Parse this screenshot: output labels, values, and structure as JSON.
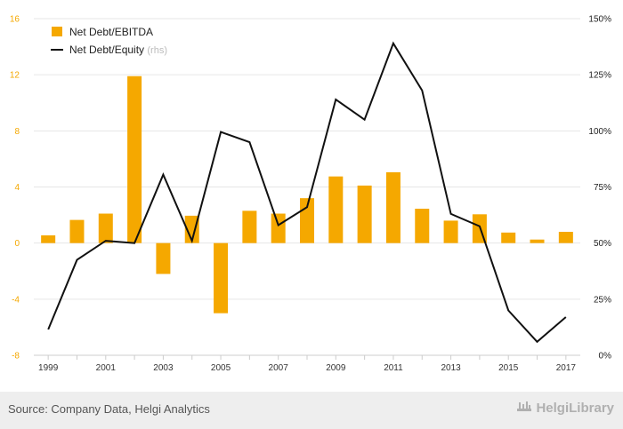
{
  "chart_data": {
    "type": "bar",
    "categories": [
      "1999",
      "2000",
      "2001",
      "2002",
      "2003",
      "2004",
      "2005",
      "2006",
      "2007",
      "2008",
      "2009",
      "2010",
      "2011",
      "2012",
      "2013",
      "2014",
      "2015",
      "2016",
      "2017"
    ],
    "x_tick_labels": [
      "1999",
      "2001",
      "2003",
      "2005",
      "2007",
      "2009",
      "2011",
      "2013",
      "2015",
      "2017"
    ],
    "series": [
      {
        "name": "Net Debt/EBITDA",
        "type": "bar",
        "axis": "left",
        "color": "#f5a800",
        "values": [
          0.55,
          1.65,
          2.1,
          11.9,
          -2.2,
          1.95,
          -5.0,
          2.3,
          2.1,
          3.2,
          4.75,
          4.1,
          5.05,
          2.45,
          1.6,
          2.05,
          0.75,
          0.25,
          0.8
        ]
      },
      {
        "name": "Net Debt/Equity",
        "note": "(rhs)",
        "type": "line",
        "axis": "right",
        "color": "#111111",
        "values": [
          11.5,
          42.5,
          51.0,
          50.0,
          80.5,
          51.0,
          99.5,
          95.0,
          58.0,
          66.0,
          114.0,
          105.0,
          139.0,
          118.0,
          63.0,
          57.5,
          20.0,
          6.0,
          17.0
        ]
      }
    ],
    "y_left": {
      "ticks": [
        "-8",
        "-4",
        "0",
        "4",
        "8",
        "12",
        "16"
      ],
      "min": -8,
      "max": 16
    },
    "y_right": {
      "ticks": [
        "0%",
        "25%",
        "50%",
        "75%",
        "100%",
        "125%",
        "150%"
      ],
      "min": 0,
      "max": 150
    },
    "legend_position": "top-left",
    "grid": true
  },
  "footer": {
    "source": "Source: Company Data, Helgi Analytics",
    "brand": "HelgiLibrary"
  }
}
